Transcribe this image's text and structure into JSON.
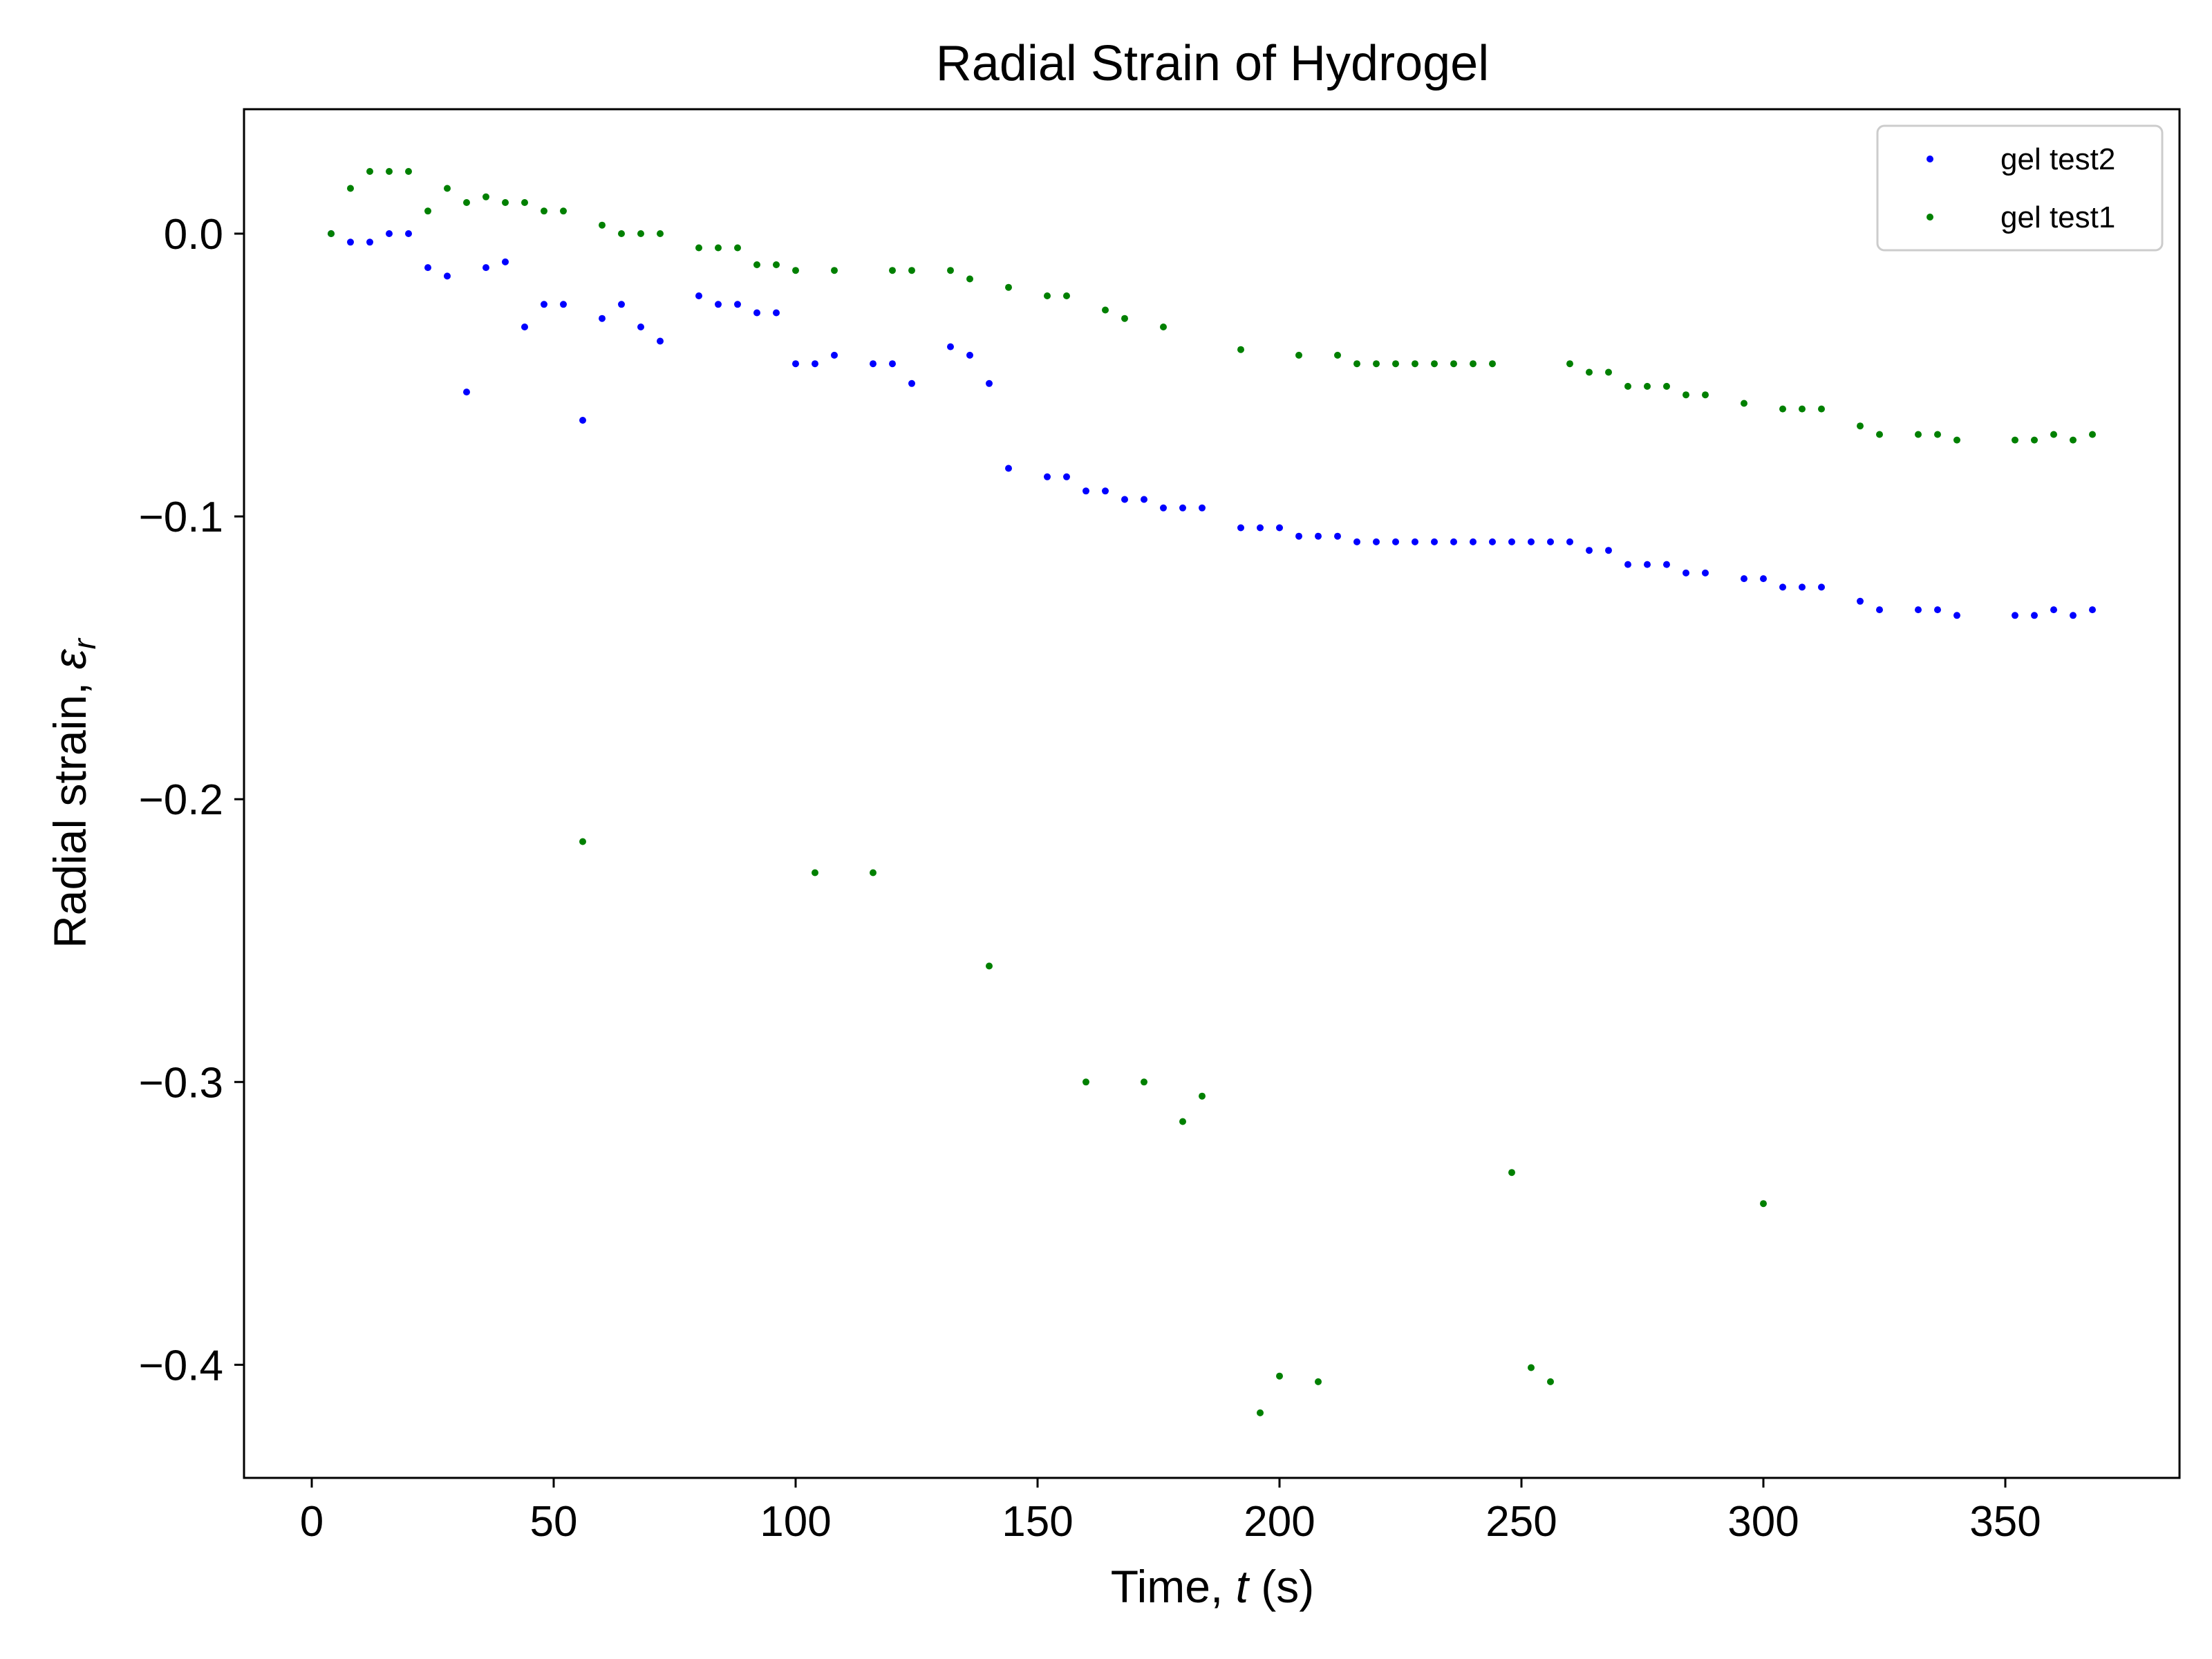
{
  "chart_data": {
    "type": "scatter",
    "title": "Radial Strain of Hydrogel",
    "xlabel_main": "Time, ",
    "xlabel_var": "t",
    "xlabel_unit": " (s)",
    "ylabel_main": "Radial strain, ",
    "ylabel_var": "ε",
    "ylabel_sub": "r",
    "xlim": [
      -14,
      386
    ],
    "ylim": [
      -0.44,
      0.044
    ],
    "x_ticks": [
      0,
      50,
      100,
      150,
      200,
      250,
      300,
      350
    ],
    "x_tick_labels": [
      "0",
      "50",
      "100",
      "150",
      "200",
      "250",
      "300",
      "350"
    ],
    "y_ticks": [
      0.0,
      -0.1,
      -0.2,
      -0.3,
      -0.4
    ],
    "y_tick_labels": [
      "0.0",
      "−0.1",
      "−0.2",
      "−0.3",
      "−0.4"
    ],
    "grid": false,
    "legend_position": "top-right",
    "series": [
      {
        "name": "gel test2",
        "color": "#0000ff",
        "points": [
          [
            4,
            0.0
          ],
          [
            8,
            -0.003
          ],
          [
            12,
            -0.003
          ],
          [
            16,
            0.0
          ],
          [
            20,
            0.0
          ],
          [
            24,
            -0.012
          ],
          [
            28,
            -0.015
          ],
          [
            32,
            -0.056
          ],
          [
            36,
            -0.012
          ],
          [
            40,
            -0.01
          ],
          [
            44,
            -0.033
          ],
          [
            48,
            -0.025
          ],
          [
            52,
            -0.025
          ],
          [
            56,
            -0.066
          ],
          [
            60,
            -0.03
          ],
          [
            64,
            -0.025
          ],
          [
            68,
            -0.033
          ],
          [
            72,
            -0.038
          ],
          [
            80,
            -0.022
          ],
          [
            84,
            -0.025
          ],
          [
            88,
            -0.025
          ],
          [
            92,
            -0.028
          ],
          [
            96,
            -0.028
          ],
          [
            100,
            -0.046
          ],
          [
            104,
            -0.046
          ],
          [
            108,
            -0.043
          ],
          [
            116,
            -0.046
          ],
          [
            120,
            -0.046
          ],
          [
            124,
            -0.053
          ],
          [
            132,
            -0.04
          ],
          [
            136,
            -0.043
          ],
          [
            140,
            -0.053
          ],
          [
            144,
            -0.083
          ],
          [
            152,
            -0.086
          ],
          [
            156,
            -0.086
          ],
          [
            160,
            -0.091
          ],
          [
            164,
            -0.091
          ],
          [
            168,
            -0.094
          ],
          [
            172,
            -0.094
          ],
          [
            176,
            -0.097
          ],
          [
            180,
            -0.097
          ],
          [
            184,
            -0.097
          ],
          [
            192,
            -0.104
          ],
          [
            196,
            -0.104
          ],
          [
            200,
            -0.104
          ],
          [
            204,
            -0.107
          ],
          [
            208,
            -0.107
          ],
          [
            212,
            -0.107
          ],
          [
            216,
            -0.109
          ],
          [
            220,
            -0.109
          ],
          [
            224,
            -0.109
          ],
          [
            228,
            -0.109
          ],
          [
            232,
            -0.109
          ],
          [
            236,
            -0.109
          ],
          [
            240,
            -0.109
          ],
          [
            244,
            -0.109
          ],
          [
            248,
            -0.109
          ],
          [
            252,
            -0.109
          ],
          [
            256,
            -0.109
          ],
          [
            260,
            -0.109
          ],
          [
            264,
            -0.112
          ],
          [
            268,
            -0.112
          ],
          [
            272,
            -0.117
          ],
          [
            276,
            -0.117
          ],
          [
            280,
            -0.117
          ],
          [
            284,
            -0.12
          ],
          [
            288,
            -0.12
          ],
          [
            296,
            -0.122
          ],
          [
            300,
            -0.122
          ],
          [
            304,
            -0.125
          ],
          [
            308,
            -0.125
          ],
          [
            312,
            -0.125
          ],
          [
            320,
            -0.13
          ],
          [
            324,
            -0.133
          ],
          [
            332,
            -0.133
          ],
          [
            336,
            -0.133
          ],
          [
            340,
            -0.135
          ],
          [
            352,
            -0.135
          ],
          [
            356,
            -0.135
          ],
          [
            360,
            -0.133
          ],
          [
            364,
            -0.135
          ],
          [
            368,
            -0.133
          ]
        ]
      },
      {
        "name": "gel test1",
        "color": "#008000",
        "points": [
          [
            4,
            0.0
          ],
          [
            8,
            0.016
          ],
          [
            12,
            0.022
          ],
          [
            16,
            0.022
          ],
          [
            20,
            0.022
          ],
          [
            24,
            0.008
          ],
          [
            28,
            0.016
          ],
          [
            32,
            0.011
          ],
          [
            36,
            0.013
          ],
          [
            40,
            0.011
          ],
          [
            44,
            0.011
          ],
          [
            48,
            0.008
          ],
          [
            52,
            0.008
          ],
          [
            56,
            -0.215
          ],
          [
            60,
            0.003
          ],
          [
            64,
            0.0
          ],
          [
            68,
            0.0
          ],
          [
            72,
            0.0
          ],
          [
            80,
            -0.005
          ],
          [
            84,
            -0.005
          ],
          [
            88,
            -0.005
          ],
          [
            92,
            -0.011
          ],
          [
            96,
            -0.011
          ],
          [
            100,
            -0.013
          ],
          [
            104,
            -0.226
          ],
          [
            108,
            -0.013
          ],
          [
            116,
            -0.226
          ],
          [
            120,
            -0.013
          ],
          [
            124,
            -0.013
          ],
          [
            132,
            -0.013
          ],
          [
            136,
            -0.016
          ],
          [
            140,
            -0.259
          ],
          [
            144,
            -0.019
          ],
          [
            152,
            -0.022
          ],
          [
            156,
            -0.022
          ],
          [
            160,
            -0.3
          ],
          [
            164,
            -0.027
          ],
          [
            168,
            -0.03
          ],
          [
            172,
            -0.3
          ],
          [
            176,
            -0.033
          ],
          [
            180,
            -0.314
          ],
          [
            184,
            -0.305
          ],
          [
            192,
            -0.041
          ],
          [
            196,
            -0.417
          ],
          [
            200,
            -0.404
          ],
          [
            204,
            -0.043
          ],
          [
            208,
            -0.406
          ],
          [
            212,
            -0.043
          ],
          [
            216,
            -0.046
          ],
          [
            220,
            -0.046
          ],
          [
            224,
            -0.046
          ],
          [
            228,
            -0.046
          ],
          [
            232,
            -0.046
          ],
          [
            236,
            -0.046
          ],
          [
            240,
            -0.046
          ],
          [
            244,
            -0.046
          ],
          [
            248,
            -0.332
          ],
          [
            252,
            -0.401
          ],
          [
            256,
            -0.406
          ],
          [
            260,
            -0.046
          ],
          [
            264,
            -0.049
          ],
          [
            268,
            -0.049
          ],
          [
            272,
            -0.054
          ],
          [
            276,
            -0.054
          ],
          [
            280,
            -0.054
          ],
          [
            284,
            -0.057
          ],
          [
            288,
            -0.057
          ],
          [
            296,
            -0.06
          ],
          [
            300,
            -0.343
          ],
          [
            304,
            -0.062
          ],
          [
            308,
            -0.062
          ],
          [
            312,
            -0.062
          ],
          [
            320,
            -0.068
          ],
          [
            324,
            -0.071
          ],
          [
            332,
            -0.071
          ],
          [
            336,
            -0.071
          ],
          [
            340,
            -0.073
          ],
          [
            352,
            -0.073
          ],
          [
            356,
            -0.073
          ],
          [
            360,
            -0.071
          ],
          [
            364,
            -0.073
          ],
          [
            368,
            -0.071
          ]
        ]
      }
    ]
  }
}
